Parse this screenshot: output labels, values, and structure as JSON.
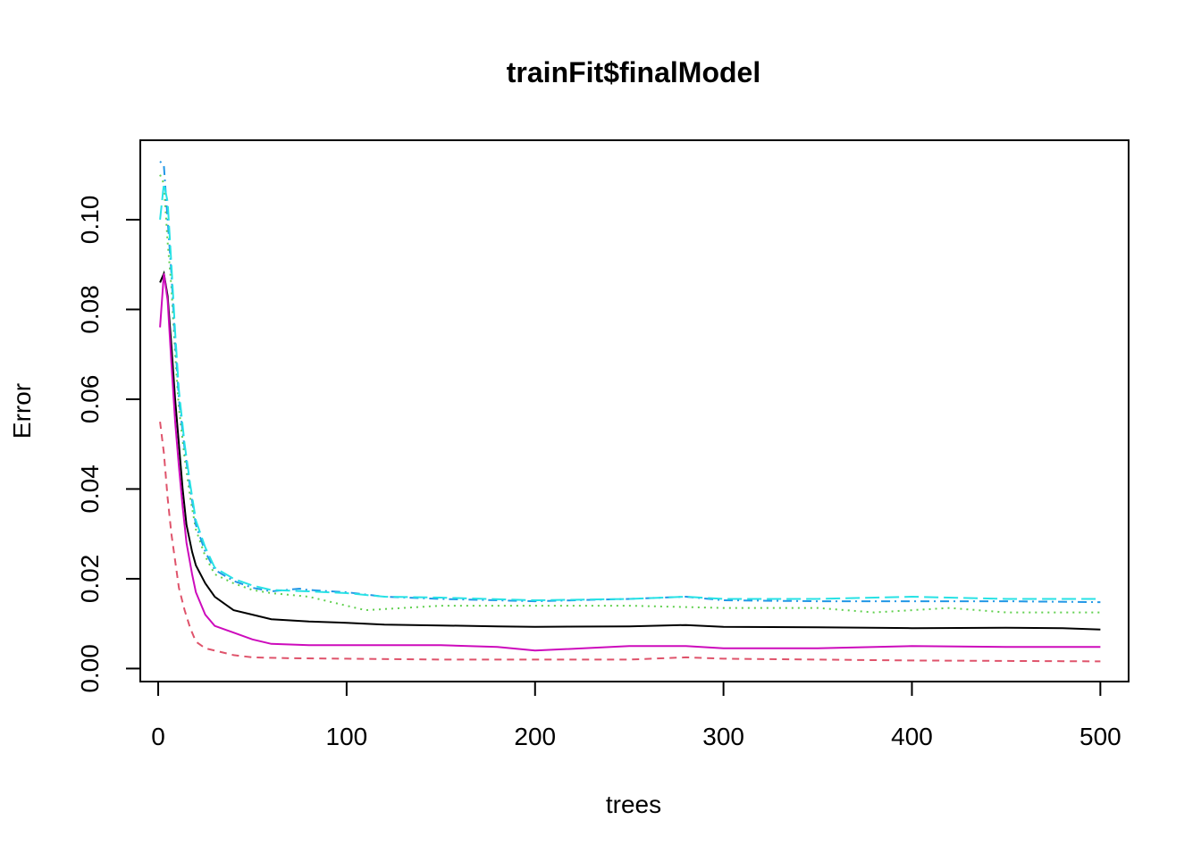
{
  "chart_data": {
    "type": "line",
    "title": "trainFit$finalModel",
    "xlabel": "trees",
    "ylabel": "Error",
    "xlim": [
      -9.5,
      515
    ],
    "ylim": [
      -0.0029,
      0.1177
    ],
    "x_ticks": [
      {
        "value": 0,
        "label": "0"
      },
      {
        "value": 100,
        "label": "100"
      },
      {
        "value": 200,
        "label": "200"
      },
      {
        "value": 300,
        "label": "300"
      },
      {
        "value": 400,
        "label": "400"
      },
      {
        "value": 500,
        "label": "500"
      }
    ],
    "y_ticks": [
      {
        "value": 0.0,
        "label": "0.00"
      },
      {
        "value": 0.02,
        "label": "0.02"
      },
      {
        "value": 0.04,
        "label": "0.04"
      },
      {
        "value": 0.06,
        "label": "0.06"
      },
      {
        "value": 0.08,
        "label": "0.08"
      },
      {
        "value": 0.1,
        "label": "0.10"
      }
    ],
    "grid": false,
    "legend": "none",
    "series": [
      {
        "color": "#000000",
        "dash": "solid",
        "points": [
          [
            1,
            0.086
          ],
          [
            3,
            0.088
          ],
          [
            5,
            0.083
          ],
          [
            7,
            0.072
          ],
          [
            9,
            0.06
          ],
          [
            11,
            0.05
          ],
          [
            13,
            0.04
          ],
          [
            15,
            0.032
          ],
          [
            18,
            0.026
          ],
          [
            20,
            0.023
          ],
          [
            25,
            0.019
          ],
          [
            30,
            0.016
          ],
          [
            35,
            0.0145
          ],
          [
            40,
            0.013
          ],
          [
            50,
            0.012
          ],
          [
            60,
            0.011
          ],
          [
            80,
            0.0105
          ],
          [
            100,
            0.0102
          ],
          [
            120,
            0.0098
          ],
          [
            150,
            0.0096
          ],
          [
            180,
            0.0094
          ],
          [
            200,
            0.0093
          ],
          [
            250,
            0.0094
          ],
          [
            280,
            0.0097
          ],
          [
            300,
            0.0093
          ],
          [
            350,
            0.0092
          ],
          [
            400,
            0.009
          ],
          [
            450,
            0.0091
          ],
          [
            480,
            0.009
          ],
          [
            500,
            0.0087
          ]
        ]
      },
      {
        "color": "#DF536B",
        "dash": "dashed",
        "points": [
          [
            1,
            0.055
          ],
          [
            3,
            0.048
          ],
          [
            5,
            0.038
          ],
          [
            7,
            0.03
          ],
          [
            9,
            0.024
          ],
          [
            11,
            0.018
          ],
          [
            14,
            0.013
          ],
          [
            17,
            0.009
          ],
          [
            20,
            0.006
          ],
          [
            25,
            0.0045
          ],
          [
            30,
            0.004
          ],
          [
            40,
            0.003
          ],
          [
            50,
            0.0025
          ],
          [
            70,
            0.0023
          ],
          [
            100,
            0.0022
          ],
          [
            150,
            0.002
          ],
          [
            200,
            0.002
          ],
          [
            250,
            0.002
          ],
          [
            280,
            0.0025
          ],
          [
            300,
            0.0022
          ],
          [
            350,
            0.002
          ],
          [
            400,
            0.0018
          ],
          [
            450,
            0.0017
          ],
          [
            500,
            0.0016
          ]
        ]
      },
      {
        "color": "#61D04F",
        "dash": "dotted",
        "points": [
          [
            1,
            0.11
          ],
          [
            3,
            0.108
          ],
          [
            5,
            0.095
          ],
          [
            7,
            0.085
          ],
          [
            9,
            0.07
          ],
          [
            11,
            0.058
          ],
          [
            14,
            0.047
          ],
          [
            17,
            0.038
          ],
          [
            20,
            0.031
          ],
          [
            25,
            0.025
          ],
          [
            30,
            0.021
          ],
          [
            40,
            0.019
          ],
          [
            50,
            0.0175
          ],
          [
            60,
            0.0168
          ],
          [
            80,
            0.016
          ],
          [
            100,
            0.014
          ],
          [
            110,
            0.013
          ],
          [
            130,
            0.0135
          ],
          [
            150,
            0.014
          ],
          [
            200,
            0.014
          ],
          [
            250,
            0.014
          ],
          [
            300,
            0.0135
          ],
          [
            350,
            0.0135
          ],
          [
            380,
            0.0125
          ],
          [
            400,
            0.013
          ],
          [
            420,
            0.0135
          ],
          [
            450,
            0.0125
          ],
          [
            500,
            0.0125
          ]
        ]
      },
      {
        "color": "#2297E6",
        "dash": "dashdot",
        "points": [
          [
            1,
            0.113
          ],
          [
            3,
            0.112
          ],
          [
            5,
            0.1
          ],
          [
            7,
            0.088
          ],
          [
            9,
            0.073
          ],
          [
            11,
            0.06
          ],
          [
            14,
            0.049
          ],
          [
            17,
            0.04
          ],
          [
            20,
            0.032
          ],
          [
            25,
            0.026
          ],
          [
            30,
            0.022
          ],
          [
            40,
            0.0195
          ],
          [
            50,
            0.018
          ],
          [
            60,
            0.0172
          ],
          [
            75,
            0.0178
          ],
          [
            80,
            0.0175
          ],
          [
            100,
            0.017
          ],
          [
            120,
            0.016
          ],
          [
            150,
            0.0155
          ],
          [
            200,
            0.015
          ],
          [
            250,
            0.0155
          ],
          [
            280,
            0.016
          ],
          [
            300,
            0.0152
          ],
          [
            350,
            0.015
          ],
          [
            400,
            0.015
          ],
          [
            450,
            0.015
          ],
          [
            500,
            0.0148
          ]
        ]
      },
      {
        "color": "#28E2E5",
        "dash": "longdash",
        "points": [
          [
            1,
            0.1
          ],
          [
            3,
            0.108
          ],
          [
            5,
            0.104
          ],
          [
            7,
            0.09
          ],
          [
            9,
            0.075
          ],
          [
            11,
            0.062
          ],
          [
            14,
            0.05
          ],
          [
            17,
            0.041
          ],
          [
            20,
            0.033
          ],
          [
            25,
            0.027
          ],
          [
            30,
            0.0225
          ],
          [
            40,
            0.02
          ],
          [
            50,
            0.0185
          ],
          [
            60,
            0.0175
          ],
          [
            80,
            0.0172
          ],
          [
            100,
            0.0168
          ],
          [
            120,
            0.016
          ],
          [
            150,
            0.0158
          ],
          [
            200,
            0.0152
          ],
          [
            250,
            0.0155
          ],
          [
            280,
            0.016
          ],
          [
            300,
            0.0155
          ],
          [
            350,
            0.0155
          ],
          [
            400,
            0.016
          ],
          [
            450,
            0.0155
          ],
          [
            500,
            0.0155
          ]
        ]
      },
      {
        "color": "#CD0BBC",
        "dash": "solid",
        "points": [
          [
            1,
            0.076
          ],
          [
            3,
            0.088
          ],
          [
            5,
            0.082
          ],
          [
            7,
            0.068
          ],
          [
            9,
            0.055
          ],
          [
            11,
            0.045
          ],
          [
            13,
            0.036
          ],
          [
            15,
            0.028
          ],
          [
            18,
            0.021
          ],
          [
            20,
            0.017
          ],
          [
            25,
            0.012
          ],
          [
            30,
            0.0095
          ],
          [
            40,
            0.008
          ],
          [
            50,
            0.0065
          ],
          [
            60,
            0.0055
          ],
          [
            80,
            0.0052
          ],
          [
            100,
            0.0052
          ],
          [
            150,
            0.0052
          ],
          [
            180,
            0.0048
          ],
          [
            200,
            0.004
          ],
          [
            250,
            0.005
          ],
          [
            280,
            0.005
          ],
          [
            300,
            0.0045
          ],
          [
            350,
            0.0045
          ],
          [
            400,
            0.005
          ],
          [
            450,
            0.0048
          ],
          [
            500,
            0.0048
          ]
        ]
      }
    ]
  }
}
